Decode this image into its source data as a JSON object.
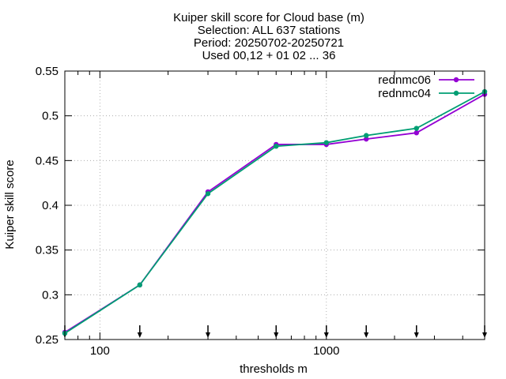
{
  "chart_data": {
    "type": "line",
    "title_lines": [
      "Kuiper skill score  for Cloud base (m)",
      "Selection: ALL    637 stations",
      "Period: 20250702-20250721",
      "Used 00,12 + 01 02 ... 36"
    ],
    "xlabel": "thresholds m",
    "ylabel": "Kuiper skill score",
    "xscale": "log",
    "xlim": [
      70,
      5000
    ],
    "ylim": [
      0.25,
      0.55
    ],
    "x_tick_labels": [
      {
        "value": 100,
        "label": "100"
      },
      {
        "value": 1000,
        "label": "1000"
      }
    ],
    "y_tick_labels": [
      {
        "value": 0.25,
        "label": "0.25"
      },
      {
        "value": 0.3,
        "label": "0.3"
      },
      {
        "value": 0.35,
        "label": "0.35"
      },
      {
        "value": 0.4,
        "label": "0.4"
      },
      {
        "value": 0.45,
        "label": "0.45"
      },
      {
        "value": 0.5,
        "label": "0.5"
      },
      {
        "value": 0.55,
        "label": "0.55"
      }
    ],
    "grid": true,
    "legend_position": "top-right",
    "threshold_markers": [
      70,
      150,
      300,
      600,
      1000,
      1500,
      2500,
      5000
    ],
    "series": [
      {
        "name": "rednmc06",
        "color": "#9400d3",
        "x": [
          70,
          150,
          300,
          600,
          1000,
          1500,
          2500,
          5000
        ],
        "y": [
          0.258,
          0.311,
          0.415,
          0.468,
          0.468,
          0.474,
          0.481,
          0.524
        ]
      },
      {
        "name": "rednmc04",
        "color": "#009e73",
        "x": [
          70,
          150,
          300,
          600,
          1000,
          1500,
          2500,
          5000
        ],
        "y": [
          0.257,
          0.311,
          0.413,
          0.466,
          0.47,
          0.478,
          0.486,
          0.527
        ]
      }
    ]
  }
}
